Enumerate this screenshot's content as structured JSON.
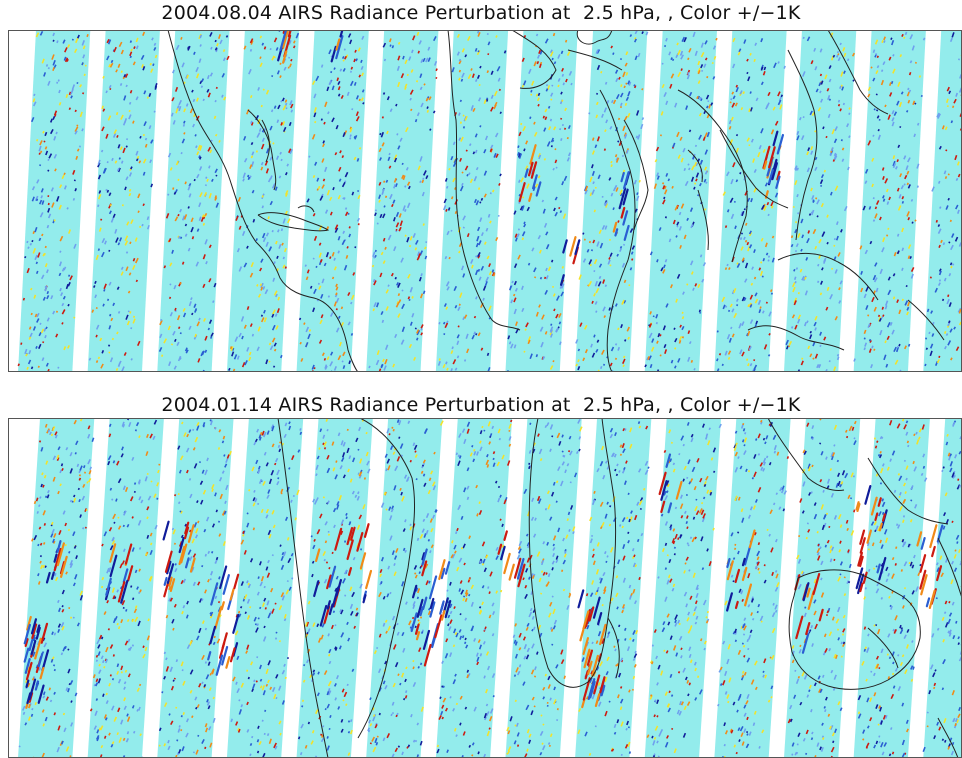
{
  "panels": [
    {
      "title": "2004.08.04 AIRS Radiance Perturbation at  2.5 hPa, , Color +/−1K",
      "swath_count": 14
    },
    {
      "title": "2004.01.14 AIRS Radiance Perturbation at  2.5 hPa, , Color +/−1K",
      "swath_count": 14
    }
  ],
  "colors": {
    "swath_background": "#93ecec",
    "gap": "#ffffff",
    "coastline": "#222222",
    "frame": "#555555",
    "positive_strong": "#cc1a10",
    "positive_mid": "#f08a18",
    "positive_weak": "#f2e22a",
    "negative_strong": "#101c9a",
    "negative_mid": "#2a5ed2",
    "negative_weak": "#6fa0ee"
  }
}
